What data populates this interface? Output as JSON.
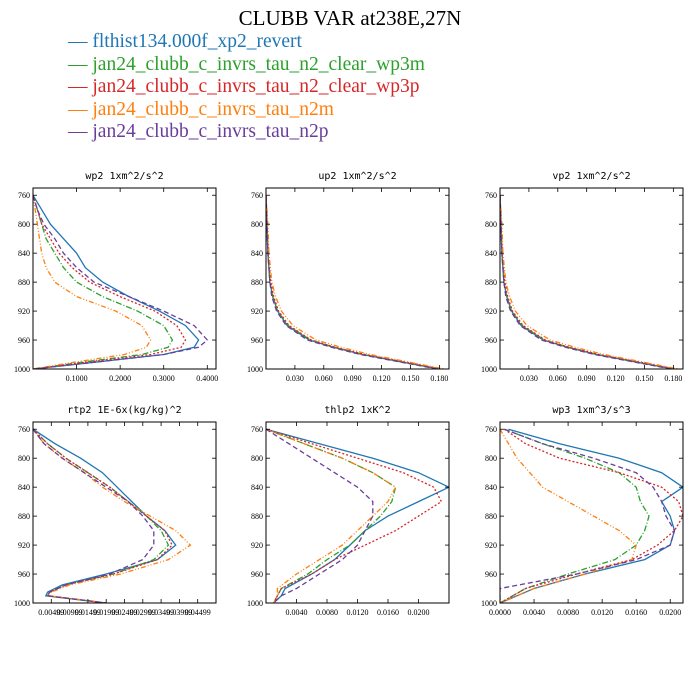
{
  "title": "CLUBB VAR at238E,27N",
  "legend": [
    {
      "marker": "—",
      "label": "flthist134.000f_xp2_revert",
      "color": "#1f77b4"
    },
    {
      "marker": "—",
      "label": "jan24_clubb_c_invrs_tau_n2_clear_wp3m",
      "color": "#2ca02c"
    },
    {
      "marker": "—",
      "label": "jan24_clubb_c_invrs_tau_n2_clear_wp3p",
      "color": "#d62728"
    },
    {
      "marker": "—",
      "label": "jan24_clubb_c_invrs_tau_n2m",
      "color": "#ff7f0e"
    },
    {
      "marker": "—",
      "label": "jan24_clubb_c_invrs_tau_n2p",
      "color": "#6a3d9a"
    }
  ],
  "chart_data": [
    {
      "type": "line",
      "title": "wp2 1xm^2/s^2",
      "ylim": [
        1000,
        750
      ],
      "yticks": [
        760,
        800,
        840,
        880,
        920,
        960,
        1000
      ],
      "xlim": [
        0,
        0.42
      ],
      "xticks": [
        0.1,
        0.2,
        0.3,
        0.4
      ],
      "xtick_labels": [
        "0.1000",
        "0.2000",
        "0.3000",
        "0.4000"
      ],
      "y": [
        760,
        780,
        800,
        820,
        840,
        860,
        880,
        900,
        920,
        940,
        960,
        970,
        980,
        990,
        1000
      ],
      "series": [
        {
          "values": [
            0.0,
            0.02,
            0.04,
            0.07,
            0.1,
            0.12,
            0.16,
            0.22,
            0.29,
            0.35,
            0.38,
            0.37,
            0.3,
            0.15,
            0.0
          ]
        },
        {
          "values": [
            0.0,
            0.01,
            0.02,
            0.03,
            0.05,
            0.07,
            0.1,
            0.16,
            0.24,
            0.3,
            0.32,
            0.31,
            0.25,
            0.12,
            0.0
          ]
        },
        {
          "values": [
            0.0,
            0.01,
            0.02,
            0.04,
            0.06,
            0.09,
            0.13,
            0.2,
            0.28,
            0.33,
            0.35,
            0.34,
            0.27,
            0.13,
            0.0
          ]
        },
        {
          "values": [
            0.0,
            0.005,
            0.01,
            0.015,
            0.02,
            0.03,
            0.05,
            0.1,
            0.19,
            0.25,
            0.27,
            0.26,
            0.21,
            0.1,
            0.0
          ]
        },
        {
          "values": [
            0.0,
            0.01,
            0.025,
            0.05,
            0.07,
            0.1,
            0.14,
            0.22,
            0.3,
            0.37,
            0.4,
            0.38,
            0.3,
            0.15,
            0.0
          ]
        }
      ]
    },
    {
      "type": "line",
      "title": "up2 1xm^2/s^2",
      "ylim": [
        1000,
        750
      ],
      "yticks": [
        760,
        800,
        840,
        880,
        920,
        960,
        1000
      ],
      "xlim": [
        0,
        0.19
      ],
      "xticks": [
        0.03,
        0.06,
        0.09,
        0.12,
        0.15,
        0.18
      ],
      "xtick_labels": [
        "0.030",
        "0.060",
        "0.090",
        "0.120",
        "0.150",
        "0.180"
      ],
      "y": [
        760,
        800,
        840,
        880,
        900,
        920,
        940,
        960,
        970,
        980,
        990,
        1000
      ],
      "series": [
        {
          "values": [
            0.0,
            0.001,
            0.002,
            0.004,
            0.007,
            0.012,
            0.022,
            0.045,
            0.07,
            0.1,
            0.14,
            0.18
          ]
        },
        {
          "values": [
            0.0,
            0.001,
            0.002,
            0.004,
            0.007,
            0.012,
            0.023,
            0.046,
            0.071,
            0.101,
            0.141,
            0.18
          ]
        },
        {
          "values": [
            0.0,
            0.001,
            0.002,
            0.005,
            0.008,
            0.013,
            0.024,
            0.047,
            0.072,
            0.103,
            0.143,
            0.182
          ]
        },
        {
          "values": [
            0.0,
            0.002,
            0.003,
            0.006,
            0.01,
            0.016,
            0.028,
            0.052,
            0.078,
            0.108,
            0.147,
            0.185
          ]
        },
        {
          "values": [
            0.0,
            0.001,
            0.002,
            0.004,
            0.006,
            0.011,
            0.021,
            0.043,
            0.068,
            0.098,
            0.138,
            0.178
          ]
        }
      ]
    },
    {
      "type": "line",
      "title": "vp2 1xm^2/s^2",
      "ylim": [
        1000,
        750
      ],
      "yticks": [
        760,
        800,
        840,
        880,
        920,
        960,
        1000
      ],
      "xlim": [
        0,
        0.19
      ],
      "xticks": [
        0.03,
        0.06,
        0.09,
        0.12,
        0.15,
        0.18
      ],
      "xtick_labels": [
        "0.030",
        "0.060",
        "0.090",
        "0.120",
        "0.150",
        "0.180"
      ],
      "y": [
        760,
        800,
        840,
        880,
        900,
        920,
        940,
        960,
        970,
        980,
        990,
        1000
      ],
      "series": [
        {
          "values": [
            0.0,
            0.001,
            0.002,
            0.004,
            0.007,
            0.012,
            0.022,
            0.045,
            0.07,
            0.1,
            0.14,
            0.18
          ]
        },
        {
          "values": [
            0.0,
            0.001,
            0.002,
            0.004,
            0.007,
            0.012,
            0.023,
            0.046,
            0.071,
            0.101,
            0.141,
            0.18
          ]
        },
        {
          "values": [
            0.0,
            0.001,
            0.002,
            0.005,
            0.008,
            0.013,
            0.024,
            0.047,
            0.072,
            0.103,
            0.143,
            0.182
          ]
        },
        {
          "values": [
            0.0,
            0.002,
            0.003,
            0.006,
            0.01,
            0.016,
            0.028,
            0.052,
            0.078,
            0.108,
            0.147,
            0.185
          ]
        },
        {
          "values": [
            0.0,
            0.001,
            0.002,
            0.004,
            0.006,
            0.011,
            0.021,
            0.043,
            0.068,
            0.098,
            0.138,
            0.178
          ]
        }
      ]
    },
    {
      "type": "line",
      "title": "rtp2 1E-6x(kg/kg)^2",
      "ylim": [
        1000,
        750
      ],
      "yticks": [
        760,
        800,
        840,
        880,
        920,
        960,
        1000
      ],
      "xlim": [
        0,
        0.05
      ],
      "xticks": [
        0.005,
        0.01,
        0.015,
        0.02,
        0.025,
        0.03,
        0.035,
        0.04,
        0.045
      ],
      "xtick_labels": [
        "0.00499",
        "0.00999",
        "0.01499",
        "0.01999",
        "0.02499",
        "0.02999",
        "0.03499",
        "0.03999",
        "0.04499"
      ],
      "y": [
        760,
        780,
        800,
        820,
        840,
        860,
        880,
        900,
        920,
        940,
        960,
        975,
        985,
        990,
        1000
      ],
      "series": [
        {
          "values": [
            0.0,
            0.006,
            0.013,
            0.019,
            0.023,
            0.027,
            0.031,
            0.036,
            0.039,
            0.034,
            0.02,
            0.008,
            0.004,
            0.0035,
            0.02
          ]
        },
        {
          "values": [
            0.0,
            0.004,
            0.009,
            0.015,
            0.021,
            0.026,
            0.031,
            0.035,
            0.037,
            0.033,
            0.022,
            0.009,
            0.0045,
            0.004,
            0.02
          ]
        },
        {
          "values": [
            0.0,
            0.004,
            0.009,
            0.015,
            0.021,
            0.026,
            0.031,
            0.036,
            0.038,
            0.034,
            0.022,
            0.009,
            0.0045,
            0.004,
            0.02
          ]
        },
        {
          "values": [
            0.0,
            0.003,
            0.008,
            0.014,
            0.019,
            0.025,
            0.032,
            0.039,
            0.043,
            0.037,
            0.024,
            0.01,
            0.005,
            0.0045,
            0.02
          ]
        },
        {
          "values": [
            0.0,
            0.003,
            0.008,
            0.014,
            0.02,
            0.026,
            0.03,
            0.033,
            0.033,
            0.03,
            0.021,
            0.009,
            0.0045,
            0.004,
            0.02
          ]
        }
      ]
    },
    {
      "type": "line",
      "title": "thlp2 1xK^2",
      "ylim": [
        1000,
        750
      ],
      "yticks": [
        760,
        800,
        840,
        880,
        920,
        960,
        1000
      ],
      "xlim": [
        0,
        0.024
      ],
      "xticks": [
        0.004,
        0.008,
        0.012,
        0.016,
        0.02
      ],
      "xtick_labels": [
        "0.0040",
        "0.0080",
        "0.0120",
        "0.0160",
        "0.0200"
      ],
      "y": [
        760,
        780,
        800,
        820,
        840,
        860,
        880,
        900,
        920,
        940,
        960,
        980,
        990,
        1000
      ],
      "series": [
        {
          "values": [
            0.0,
            0.007,
            0.014,
            0.02,
            0.024,
            0.02,
            0.016,
            0.013,
            0.011,
            0.009,
            0.006,
            0.0025,
            0.002,
            0.001
          ]
        },
        {
          "values": [
            0.0,
            0.005,
            0.01,
            0.014,
            0.017,
            0.0165,
            0.015,
            0.013,
            0.011,
            0.008,
            0.0055,
            0.002,
            0.0015,
            0.001
          ]
        },
        {
          "values": [
            0.0,
            0.006,
            0.012,
            0.018,
            0.022,
            0.023,
            0.02,
            0.017,
            0.013,
            0.009,
            0.006,
            0.002,
            0.0015,
            0.001
          ]
        },
        {
          "values": [
            0.0,
            0.005,
            0.01,
            0.014,
            0.017,
            0.016,
            0.014,
            0.012,
            0.01,
            0.007,
            0.004,
            0.0015,
            0.0015,
            0.001
          ]
        },
        {
          "values": [
            0.0,
            0.003,
            0.006,
            0.009,
            0.012,
            0.014,
            0.014,
            0.013,
            0.012,
            0.01,
            0.007,
            0.004,
            0.002,
            0.001
          ]
        }
      ]
    },
    {
      "type": "line",
      "title": "wp3 1xm^3/s^3",
      "ylim": [
        1000,
        750
      ],
      "yticks": [
        760,
        800,
        840,
        880,
        920,
        960,
        1000
      ],
      "xlim": [
        0,
        0.0215
      ],
      "xticks": [
        0.0,
        0.004,
        0.008,
        0.012,
        0.016,
        0.02
      ],
      "xtick_labels": [
        "0.0000",
        "0.0040",
        "0.0080",
        "0.0120",
        "0.0160",
        "0.0200"
      ],
      "y": [
        760,
        780,
        800,
        820,
        840,
        860,
        880,
        900,
        920,
        940,
        960,
        980,
        990,
        1000
      ],
      "series": [
        {
          "values": [
            0.001,
            0.007,
            0.014,
            0.019,
            0.0215,
            0.019,
            0.02,
            0.0205,
            0.02,
            0.017,
            0.01,
            0.004,
            0.002,
            0.0
          ]
        },
        {
          "values": [
            0.0005,
            0.005,
            0.01,
            0.014,
            0.016,
            0.0165,
            0.0175,
            0.017,
            0.016,
            0.0135,
            0.008,
            0.003,
            0.0015,
            0.0
          ]
        },
        {
          "values": [
            0.0005,
            0.003,
            0.007,
            0.014,
            0.019,
            0.021,
            0.0215,
            0.0205,
            0.0185,
            0.0155,
            0.009,
            0.003,
            0.0015,
            0.0
          ]
        },
        {
          "values": [
            0.0,
            0.001,
            0.002,
            0.0035,
            0.005,
            0.008,
            0.011,
            0.014,
            0.016,
            0.0155,
            0.01,
            0.004,
            0.002,
            0.0
          ]
        },
        {
          "values": [
            0.0005,
            0.005,
            0.011,
            0.016,
            0.018,
            0.019,
            0.0195,
            0.0205,
            0.02,
            0.016,
            0.009,
            0.0,
            0.0,
            0.0
          ]
        }
      ]
    }
  ]
}
